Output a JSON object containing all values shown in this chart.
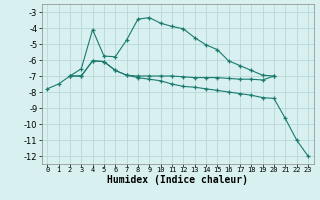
{
  "line1_x": [
    2,
    3,
    4,
    5,
    6,
    7,
    8,
    9,
    10,
    11,
    12,
    13,
    14,
    15,
    16,
    17,
    18,
    19,
    20
  ],
  "line1_y": [
    -7.0,
    -6.55,
    -4.1,
    -5.75,
    -5.8,
    -4.75,
    -3.45,
    -3.35,
    -3.7,
    -3.9,
    -4.05,
    -4.6,
    -5.05,
    -5.35,
    -6.05,
    -6.35,
    -6.65,
    -6.95,
    -7.0
  ],
  "line2_x": [
    2,
    3,
    4,
    5,
    6,
    7,
    8,
    9,
    10,
    11,
    12,
    13,
    14,
    15,
    16,
    17,
    18,
    19,
    20
  ],
  "line2_y": [
    -7.0,
    -7.0,
    -6.05,
    -6.1,
    -6.65,
    -6.95,
    -7.0,
    -7.0,
    -7.0,
    -7.0,
    -7.05,
    -7.1,
    -7.1,
    -7.1,
    -7.15,
    -7.2,
    -7.2,
    -7.25,
    -7.0
  ],
  "line3_x": [
    0,
    1,
    2,
    3,
    4,
    5,
    6,
    7,
    8,
    9,
    10,
    11,
    12,
    13,
    14,
    15,
    16,
    17,
    18,
    19,
    20,
    21,
    22,
    23
  ],
  "line3_y": [
    -7.8,
    -7.5,
    -7.0,
    -7.0,
    -6.05,
    -6.1,
    -6.65,
    -6.95,
    -7.1,
    -7.2,
    -7.3,
    -7.5,
    -7.65,
    -7.7,
    -7.8,
    -7.9,
    -8.0,
    -8.1,
    -8.2,
    -8.35,
    -8.4,
    -9.65,
    -11.0,
    -12.0
  ],
  "color": "#1a7a6e",
  "bg_color": "#d8f0f0",
  "grid_color": "#b8d8d8",
  "xlabel": "Humidex (Indice chaleur)",
  "xlim": [
    -0.5,
    23.5
  ],
  "ylim": [
    -12.5,
    -2.5
  ],
  "yticks": [
    -3,
    -4,
    -5,
    -6,
    -7,
    -8,
    -9,
    -10,
    -11,
    -12
  ],
  "xticks": [
    0,
    1,
    2,
    3,
    4,
    5,
    6,
    7,
    8,
    9,
    10,
    11,
    12,
    13,
    14,
    15,
    16,
    17,
    18,
    19,
    20,
    21,
    22,
    23
  ],
  "marker": "+",
  "markersize": 3,
  "linewidth": 0.8,
  "fontsize_xtick": 5,
  "fontsize_ytick": 6,
  "fontsize_label": 7
}
